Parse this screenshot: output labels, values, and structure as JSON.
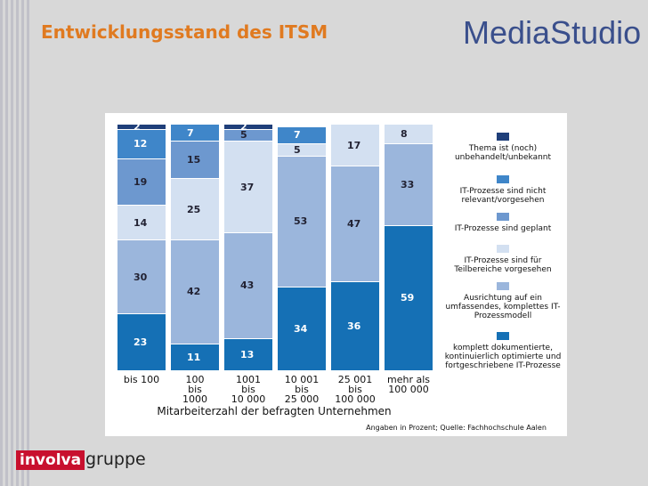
{
  "header": {
    "title": "Entwicklungsstand des ITSM",
    "logo": "MediaStudio"
  },
  "footer": {
    "logo_left": "involva",
    "logo_right": "gruppe"
  },
  "chart_data": {
    "type": "stacked_bar",
    "categories": [
      "bis 100",
      "100\nbis\n1000",
      "1001\nbis\n10 000",
      "10 001\nbis\n25 000",
      "25 001\nbis\n100 000",
      "mehr als\n100 000"
    ],
    "x_label": "Mitarbeiterzahl der befragten Unternehmen",
    "source": "Angaben in Prozent; Quelle: Fachhochschule Aalen",
    "ylim": [
      0,
      100
    ],
    "series": [
      {
        "name": "komplett dokumentierte, kontinuierlich optimierte und fortgeschriebene IT-Prozesse",
        "color": "#1570b5",
        "values": [
          23,
          11,
          13,
          34,
          36,
          59
        ]
      },
      {
        "name": "Ausrichtung auf ein umfassendes, komplettes IT-Prozessmodell",
        "color": "#9bb6dc",
        "values": [
          30,
          42,
          43,
          53,
          47,
          33
        ]
      },
      {
        "name": "IT-Prozesse sind für Teilbereiche vorgesehen",
        "color": "#d3e0f1",
        "values": [
          14,
          25,
          37,
          5,
          17,
          8
        ]
      },
      {
        "name": "IT-Prozesse sind geplant",
        "color": "#6d98cf",
        "values": [
          19,
          15,
          5,
          null,
          null,
          null
        ]
      },
      {
        "name": "IT-Prozesse sind nicht relevant/vorgesehen",
        "color": "#3f86c9",
        "values": [
          12,
          7,
          null,
          7,
          null,
          null
        ]
      },
      {
        "name": "Thema ist (noch) unbehandelt/unbekannt",
        "color": "#1f3f7a",
        "values": [
          2,
          null,
          2,
          null,
          null,
          null
        ]
      }
    ]
  }
}
